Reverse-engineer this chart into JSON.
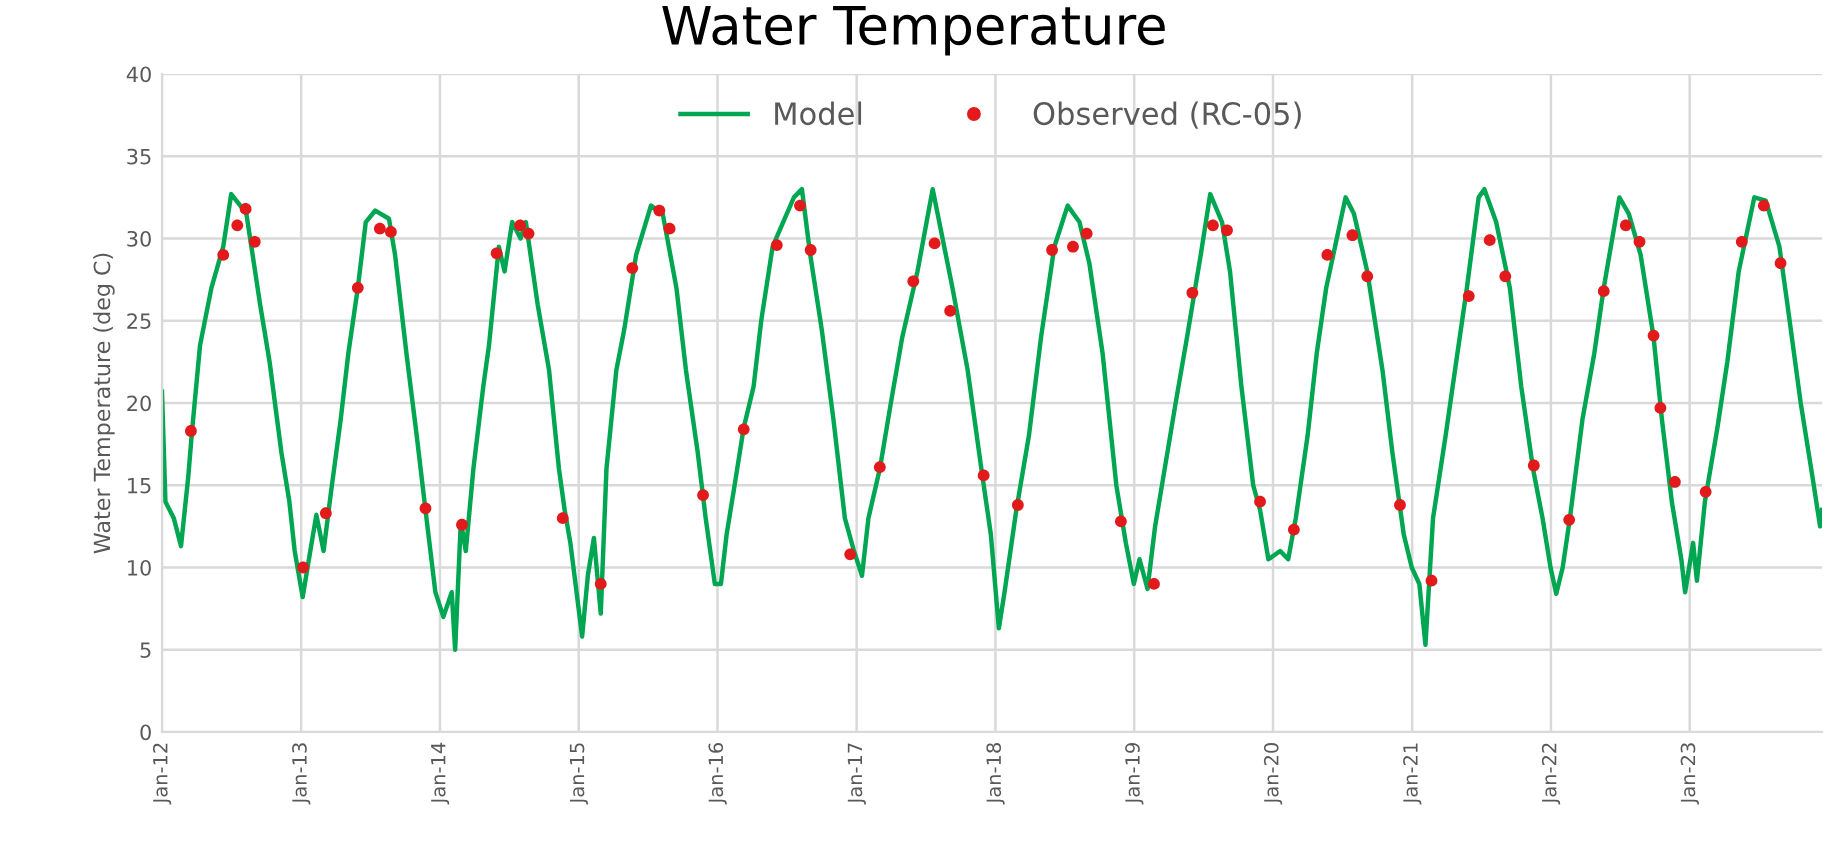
{
  "chart_data": {
    "type": "line",
    "title": "Water Temperature",
    "ylabel": "Water Temperature (deg C)",
    "xlim": [
      "2012-01-01",
      "2023-12-15"
    ],
    "xticks": [
      {
        "value": "2012-01-01",
        "label": "Jan-12"
      },
      {
        "value": "2013-01-01",
        "label": "Jan-13"
      },
      {
        "value": "2014-01-01",
        "label": "Jan-14"
      },
      {
        "value": "2015-01-01",
        "label": "Jan-15"
      },
      {
        "value": "2016-01-01",
        "label": "Jan-16"
      },
      {
        "value": "2017-01-01",
        "label": "Jan-17"
      },
      {
        "value": "2018-01-01",
        "label": "Jan-18"
      },
      {
        "value": "2019-01-01",
        "label": "Jan-19"
      },
      {
        "value": "2020-01-01",
        "label": "Jan-20"
      },
      {
        "value": "2021-01-01",
        "label": "Jan-21"
      },
      {
        "value": "2022-01-01",
        "label": "Jan-22"
      },
      {
        "value": "2023-01-01",
        "label": "Jan-23"
      }
    ],
    "ylim": [
      0,
      40
    ],
    "yticks": [
      0,
      5,
      10,
      15,
      20,
      25,
      30,
      35,
      40
    ],
    "grid": true,
    "legend": "top",
    "series": [
      {
        "name": "Model",
        "color": "#00a651",
        "marker": "none",
        "x": [
          "2012-01-01",
          "2012-01-10",
          "2012-02-01",
          "2012-02-20",
          "2012-03-10",
          "2012-03-20",
          "2012-04-10",
          "2012-05-10",
          "2012-06-10",
          "2012-07-01",
          "2012-07-25",
          "2012-08-10",
          "2012-09-15",
          "2012-10-10",
          "2012-11-10",
          "2012-12-01",
          "2012-12-15",
          "2013-01-05",
          "2013-01-25",
          "2013-02-10",
          "2013-03-01",
          "2013-03-20",
          "2013-04-15",
          "2013-05-05",
          "2013-05-30",
          "2013-06-20",
          "2013-07-15",
          "2013-08-20",
          "2013-09-05",
          "2013-10-05",
          "2013-11-01",
          "2013-11-24",
          "2013-12-20",
          "2014-01-10",
          "2014-02-01",
          "2014-02-10",
          "2014-02-25",
          "2014-03-10",
          "2014-03-30",
          "2014-04-25",
          "2014-05-10",
          "2014-06-05",
          "2014-06-20",
          "2014-07-10",
          "2014-08-01",
          "2014-08-15",
          "2014-09-15",
          "2014-10-15",
          "2014-11-10",
          "2014-11-25",
          "2014-12-10",
          "2015-01-10",
          "2015-01-25",
          "2015-02-10",
          "2015-02-28",
          "2015-03-15",
          "2015-04-10",
          "2015-05-01",
          "2015-06-01",
          "2015-07-10",
          "2015-08-10",
          "2015-09-15",
          "2015-10-10",
          "2015-11-10",
          "2015-12-01",
          "2015-12-25",
          "2016-01-10",
          "2016-01-25",
          "2016-02-15",
          "2016-03-10",
          "2016-04-05",
          "2016-04-25",
          "2016-05-25",
          "2016-07-20",
          "2016-08-10",
          "2016-09-01",
          "2016-10-01",
          "2016-11-01",
          "2016-12-01",
          "2016-12-25",
          "2017-01-15",
          "2017-02-01",
          "2017-03-03",
          "2017-04-01",
          "2017-05-01",
          "2017-06-10",
          "2017-07-20",
          "2017-08-15",
          "2017-09-10",
          "2017-10-20",
          "2017-11-25",
          "2017-12-20",
          "2018-01-10",
          "2018-01-25",
          "2018-02-25",
          "2018-03-30",
          "2018-05-01",
          "2018-06-05",
          "2018-07-10",
          "2018-08-10",
          "2018-09-05",
          "2018-10-10",
          "2018-11-15",
          "2018-12-10",
          "2018-12-31",
          "2019-01-15",
          "2019-02-05",
          "2019-02-25",
          "2019-03-15",
          "2019-04-20",
          "2019-05-20",
          "2019-06-25",
          "2019-07-20",
          "2019-08-20",
          "2019-09-10",
          "2019-10-10",
          "2019-11-10",
          "2019-11-28",
          "2019-12-20",
          "2020-01-20",
          "2020-02-10",
          "2020-03-01",
          "2020-04-01",
          "2020-04-25",
          "2020-05-20",
          "2020-07-10",
          "2020-08-01",
          "2020-09-05",
          "2020-10-15",
          "2020-11-10",
          "2020-12-10",
          "2020-12-31",
          "2021-01-20",
          "2021-02-05",
          "2021-02-25",
          "2021-03-30",
          "2021-04-30",
          "2021-05-25",
          "2021-06-25",
          "2021-07-10",
          "2021-08-10",
          "2021-09-15",
          "2021-10-15",
          "2021-11-15",
          "2021-12-10",
          "2021-12-31",
          "2022-01-15",
          "2022-02-01",
          "2022-02-20",
          "2022-03-25",
          "2022-04-25",
          "2022-05-20",
          "2022-06-30",
          "2022-07-25",
          "2022-08-25",
          "2022-09-28",
          "2022-10-20",
          "2022-11-15",
          "2022-12-10",
          "2022-12-20",
          "2023-01-10",
          "2023-01-20",
          "2023-02-10",
          "2023-03-15",
          "2023-04-10",
          "2023-05-10",
          "2023-06-20",
          "2023-07-20",
          "2023-08-25",
          "2023-09-15",
          "2023-10-20",
          "2023-11-20",
          "2023-12-10",
          "2023-12-15"
        ],
        "values": [
          20.7,
          14,
          13,
          11.3,
          15.5,
          18.3,
          23.5,
          27,
          29.5,
          32.7,
          32,
          31.5,
          26,
          22.5,
          17,
          14,
          11,
          8.2,
          11,
          13.2,
          11,
          14.5,
          19,
          23,
          27,
          31,
          31.7,
          31.2,
          29,
          23,
          18,
          13.5,
          8.5,
          7,
          8.5,
          5,
          12.8,
          11,
          16,
          21,
          23.5,
          29.5,
          28,
          31,
          30,
          31,
          26,
          22,
          16,
          13.5,
          11.5,
          5.8,
          9.5,
          11.8,
          7.2,
          16,
          22,
          24.5,
          29,
          32,
          31.5,
          27,
          22,
          17,
          13,
          9,
          9,
          12,
          15,
          18.5,
          21,
          25,
          29.5,
          32.5,
          33,
          29,
          24.5,
          19,
          13,
          11,
          9.5,
          13,
          16,
          20,
          24,
          28,
          33,
          30,
          27,
          22,
          16,
          12,
          6.3,
          8.5,
          13.5,
          18,
          24,
          29.5,
          32,
          31,
          28.5,
          23,
          15,
          11.5,
          9,
          10.5,
          8.7,
          12.5,
          15,
          20,
          24,
          29,
          32.7,
          31,
          28,
          21,
          15,
          13.5,
          10.5,
          11,
          10.5,
          13,
          18,
          23,
          27,
          32.5,
          31.5,
          28,
          22,
          17,
          12,
          10,
          9,
          5.3,
          13,
          18,
          23,
          27,
          32.5,
          33,
          31,
          27,
          21,
          16,
          13,
          10,
          8.4,
          10,
          13,
          19,
          23,
          27,
          32.5,
          31.5,
          29,
          24,
          19,
          14,
          10.5,
          8.5,
          11.5,
          9.2,
          14,
          18.5,
          22.5,
          28,
          32.5,
          32.3,
          29.5,
          26,
          20,
          15.5,
          12.5,
          13.5
        ]
      },
      {
        "name": "Observed (RC-05)",
        "type": "scatter",
        "color": "#e31a1c",
        "marker": "circle",
        "x": [
          "2012-03-17",
          "2012-06-10",
          "2012-07-17",
          "2012-08-08",
          "2012-09-01",
          "2013-01-06",
          "2013-03-07",
          "2013-05-30",
          "2013-07-27",
          "2013-08-25",
          "2013-11-24",
          "2014-02-28",
          "2014-05-30",
          "2014-07-31",
          "2014-08-22",
          "2014-11-20",
          "2015-02-28",
          "2015-05-22",
          "2015-08-01",
          "2015-08-28",
          "2015-11-24",
          "2016-03-10",
          "2016-06-05",
          "2016-08-05",
          "2016-09-02",
          "2016-12-15",
          "2017-03-03",
          "2017-05-30",
          "2017-07-25",
          "2017-09-04",
          "2017-12-01",
          "2018-03-01",
          "2018-05-30",
          "2018-07-24",
          "2018-08-29",
          "2018-11-27",
          "2019-02-22",
          "2019-06-03",
          "2019-07-27",
          "2019-09-02",
          "2019-11-28",
          "2020-02-25",
          "2020-05-23",
          "2020-07-28",
          "2020-09-05",
          "2020-11-30",
          "2021-02-21",
          "2021-05-30",
          "2021-07-24",
          "2021-09-03",
          "2021-11-17",
          "2022-02-18",
          "2022-05-20",
          "2022-07-17",
          "2022-08-22",
          "2022-09-28",
          "2022-10-16",
          "2022-11-23",
          "2023-02-12",
          "2023-05-18",
          "2023-07-15",
          "2023-08-28"
        ],
        "values": [
          18.3,
          29,
          30.8,
          31.8,
          29.8,
          10,
          13.3,
          27,
          30.6,
          30.4,
          13.6,
          12.6,
          29.1,
          30.8,
          30.3,
          13,
          9,
          28.2,
          31.7,
          30.6,
          14.4,
          18.4,
          29.6,
          32,
          29.3,
          10.8,
          16.1,
          27.4,
          29.7,
          25.6,
          15.6,
          13.8,
          29.3,
          29.5,
          30.3,
          12.8,
          9,
          26.7,
          30.8,
          30.5,
          14,
          12.3,
          29,
          30.2,
          27.7,
          13.8,
          9.2,
          26.5,
          29.9,
          27.7,
          16.2,
          12.9,
          26.8,
          30.8,
          29.8,
          24.1,
          19.7,
          15.2,
          14.6,
          29.8,
          32,
          28.5
        ]
      }
    ]
  }
}
